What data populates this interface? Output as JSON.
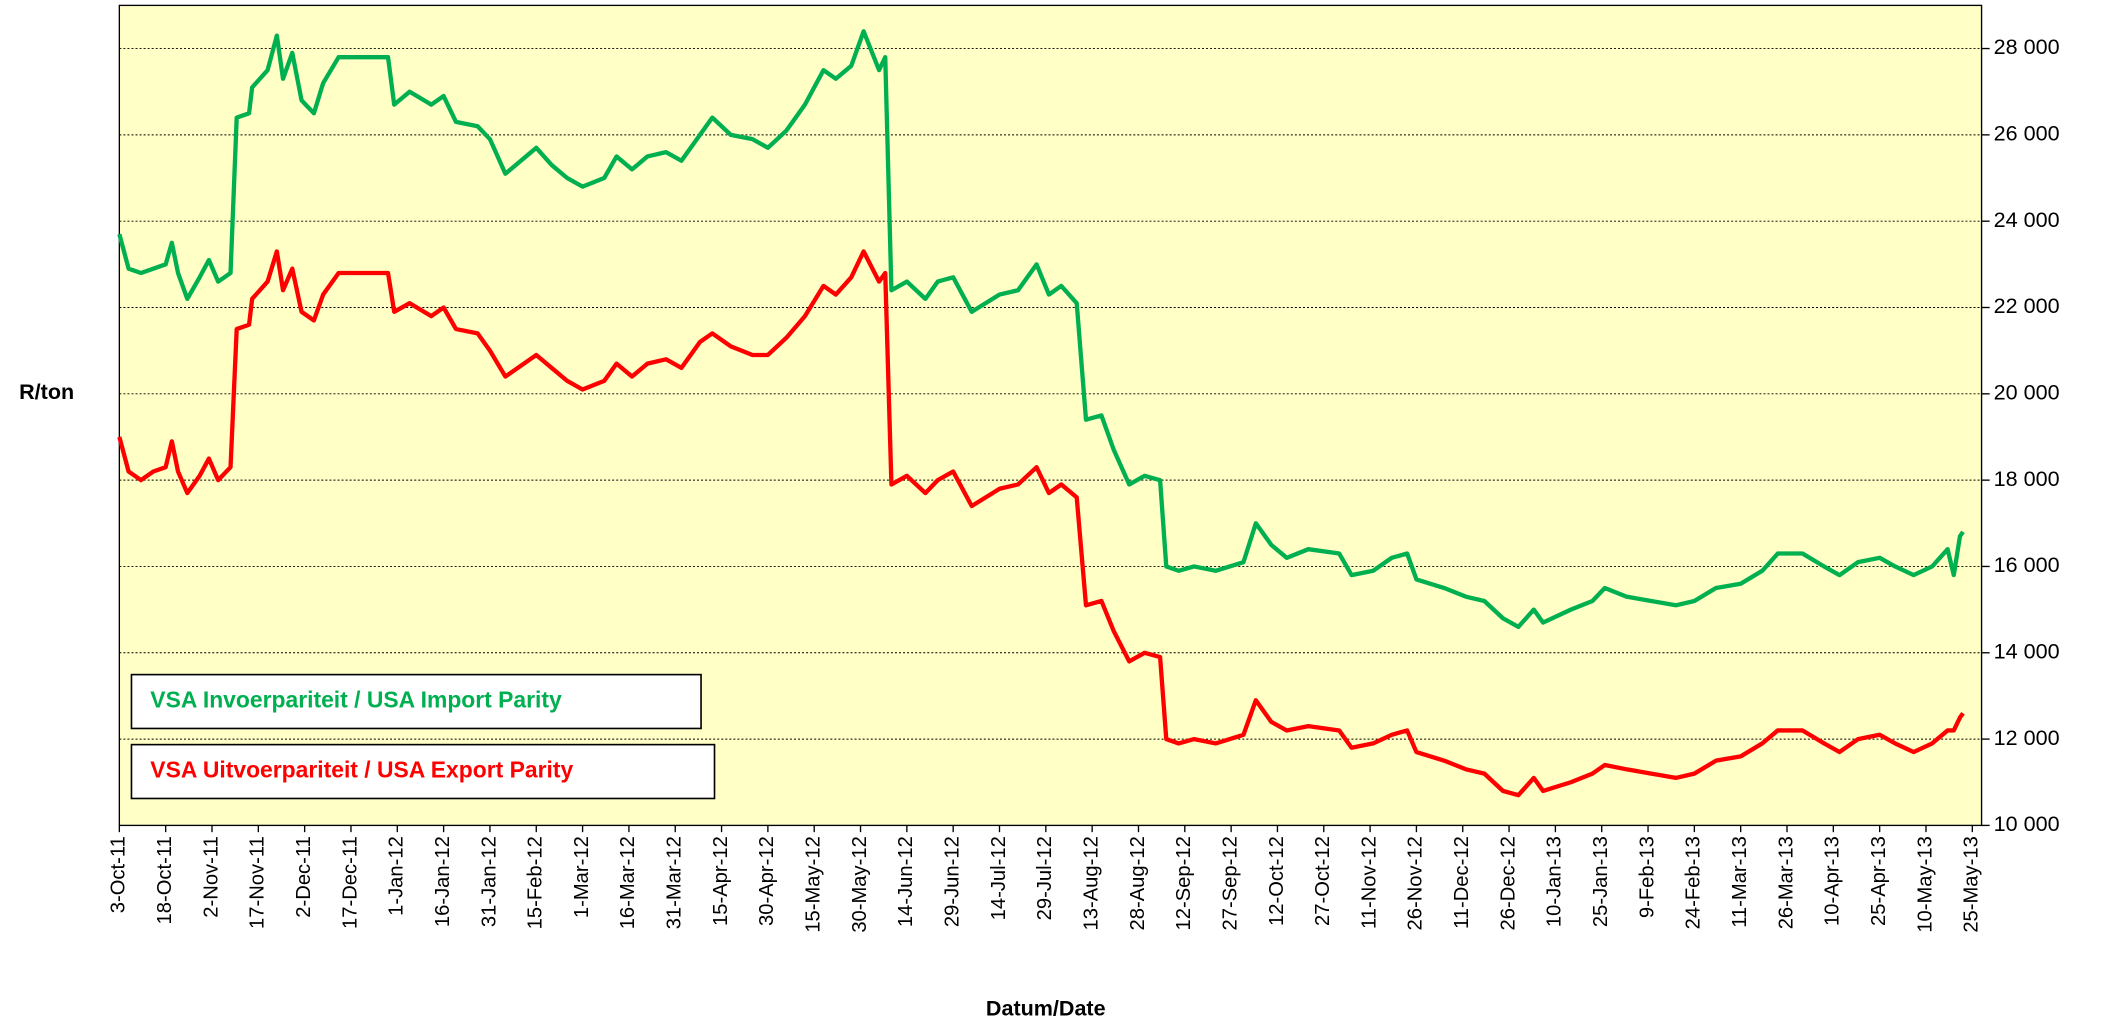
{
  "chart_data": {
    "type": "line",
    "x_label": "Datum/Date",
    "y_label": "R/ton",
    "xlim": [
      "2011-10-03",
      "2013-05-28"
    ],
    "xticks": [
      {
        "value": "2011-10-03",
        "label": "3-Oct-11"
      },
      {
        "value": "2011-10-18",
        "label": "18-Oct-11"
      },
      {
        "value": "2011-11-02",
        "label": "2-Nov-11"
      },
      {
        "value": "2011-11-17",
        "label": "17-Nov-11"
      },
      {
        "value": "2011-12-02",
        "label": "2-Dec-11"
      },
      {
        "value": "2011-12-17",
        "label": "17-Dec-11"
      },
      {
        "value": "2012-01-01",
        "label": "1-Jan-12"
      },
      {
        "value": "2012-01-16",
        "label": "16-Jan-12"
      },
      {
        "value": "2012-01-31",
        "label": "31-Jan-12"
      },
      {
        "value": "2012-02-15",
        "label": "15-Feb-12"
      },
      {
        "value": "2012-03-01",
        "label": "1-Mar-12"
      },
      {
        "value": "2012-03-16",
        "label": "16-Mar-12"
      },
      {
        "value": "2012-03-31",
        "label": "31-Mar-12"
      },
      {
        "value": "2012-04-15",
        "label": "15-Apr-12"
      },
      {
        "value": "2012-04-30",
        "label": "30-Apr-12"
      },
      {
        "value": "2012-05-15",
        "label": "15-May-12"
      },
      {
        "value": "2012-05-30",
        "label": "30-May-12"
      },
      {
        "value": "2012-06-14",
        "label": "14-Jun-12"
      },
      {
        "value": "2012-06-29",
        "label": "29-Jun-12"
      },
      {
        "value": "2012-07-14",
        "label": "14-Jul-12"
      },
      {
        "value": "2012-07-29",
        "label": "29-Jul-12"
      },
      {
        "value": "2012-08-13",
        "label": "13-Aug-12"
      },
      {
        "value": "2012-08-28",
        "label": "28-Aug-12"
      },
      {
        "value": "2012-09-12",
        "label": "12-Sep-12"
      },
      {
        "value": "2012-09-27",
        "label": "27-Sep-12"
      },
      {
        "value": "2012-10-12",
        "label": "12-Oct-12"
      },
      {
        "value": "2012-10-27",
        "label": "27-Oct-12"
      },
      {
        "value": "2012-11-11",
        "label": "11-Nov-12"
      },
      {
        "value": "2012-11-26",
        "label": "26-Nov-12"
      },
      {
        "value": "2012-12-11",
        "label": "11-Dec-12"
      },
      {
        "value": "2012-12-26",
        "label": "26-Dec-12"
      },
      {
        "value": "2013-01-10",
        "label": "10-Jan-13"
      },
      {
        "value": "2013-01-25",
        "label": "25-Jan-13"
      },
      {
        "value": "2013-02-09",
        "label": "9-Feb-13"
      },
      {
        "value": "2013-02-24",
        "label": "24-Feb-13"
      },
      {
        "value": "2013-03-11",
        "label": "11-Mar-13"
      },
      {
        "value": "2013-03-26",
        "label": "26-Mar-13"
      },
      {
        "value": "2013-04-10",
        "label": "10-Apr-13"
      },
      {
        "value": "2013-04-25",
        "label": "25-Apr-13"
      },
      {
        "value": "2013-05-10",
        "label": "10-May-13"
      },
      {
        "value": "2013-05-25",
        "label": "25-May-13"
      }
    ],
    "ylim": [
      10000,
      29000
    ],
    "yticks": [
      {
        "value": 10000,
        "label": "10 000"
      },
      {
        "value": 12000,
        "label": "12 000"
      },
      {
        "value": 14000,
        "label": "14 000"
      },
      {
        "value": 16000,
        "label": "16 000"
      },
      {
        "value": 18000,
        "label": "18 000"
      },
      {
        "value": 20000,
        "label": "20 000"
      },
      {
        "value": 22000,
        "label": "22 000"
      },
      {
        "value": 24000,
        "label": "24 000"
      },
      {
        "value": 26000,
        "label": "26 000"
      },
      {
        "value": 28000,
        "label": "28 000"
      }
    ],
    "y_axis_side": "right",
    "grid": true,
    "background": "#ffffc6",
    "legend": "lower left",
    "x": [
      "2011-10-03",
      "2011-10-06",
      "2011-10-10",
      "2011-10-14",
      "2011-10-18",
      "2011-10-20",
      "2011-10-22",
      "2011-10-25",
      "2011-10-29",
      "2011-11-01",
      "2011-11-04",
      "2011-11-08",
      "2011-11-10",
      "2011-11-14",
      "2011-11-15",
      "2011-11-20",
      "2011-11-23",
      "2011-11-25",
      "2011-11-28",
      "2011-12-01",
      "2011-12-05",
      "2011-12-08",
      "2011-12-13",
      "2011-12-29",
      "2011-12-31",
      "2012-01-05",
      "2012-01-12",
      "2012-01-16",
      "2012-01-20",
      "2012-01-27",
      "2012-01-31",
      "2012-02-05",
      "2012-02-15",
      "2012-02-20",
      "2012-02-25",
      "2012-03-01",
      "2012-03-08",
      "2012-03-12",
      "2012-03-17",
      "2012-03-22",
      "2012-03-28",
      "2012-04-02",
      "2012-04-08",
      "2012-04-12",
      "2012-04-18",
      "2012-04-25",
      "2012-04-30",
      "2012-05-06",
      "2012-05-12",
      "2012-05-18",
      "2012-05-22",
      "2012-05-27",
      "2012-05-31",
      "2012-06-05",
      "2012-06-07",
      "2012-06-09",
      "2012-06-14",
      "2012-06-20",
      "2012-06-24",
      "2012-06-29",
      "2012-07-05",
      "2012-07-14",
      "2012-07-20",
      "2012-07-26",
      "2012-07-30",
      "2012-08-03",
      "2012-08-08",
      "2012-08-11",
      "2012-08-16",
      "2012-08-20",
      "2012-08-25",
      "2012-08-30",
      "2012-09-04",
      "2012-09-06",
      "2012-09-10",
      "2012-09-15",
      "2012-09-22",
      "2012-10-01",
      "2012-10-05",
      "2012-10-10",
      "2012-10-15",
      "2012-10-22",
      "2012-11-01",
      "2012-11-05",
      "2012-11-12",
      "2012-11-18",
      "2012-11-23",
      "2012-11-26",
      "2012-12-05",
      "2012-12-12",
      "2012-12-18",
      "2012-12-24",
      "2012-12-29",
      "2013-01-03",
      "2013-01-06",
      "2013-01-15",
      "2013-01-22",
      "2013-01-26",
      "2013-02-02",
      "2013-02-10",
      "2013-02-18",
      "2013-02-24",
      "2013-03-03",
      "2013-03-11",
      "2013-03-18",
      "2013-03-23",
      "2013-03-31",
      "2013-04-07",
      "2013-04-12",
      "2013-04-18",
      "2013-04-25",
      "2013-04-30",
      "2013-05-06",
      "2013-05-12",
      "2013-05-17",
      "2013-05-19",
      "2013-05-21",
      "2013-05-22"
    ],
    "series": [
      {
        "name": "VSA Invoerpariteit / USA Import Parity",
        "color": "#00b050",
        "values": [
          23700,
          22900,
          22800,
          22900,
          23000,
          23500,
          22800,
          22200,
          22700,
          23100,
          22600,
          22800,
          26400,
          26500,
          27100,
          27500,
          28300,
          27300,
          27900,
          26800,
          26500,
          27200,
          27800,
          27800,
          26700,
          27000,
          26700,
          26900,
          26300,
          26200,
          25900,
          25100,
          25700,
          25300,
          25000,
          24800,
          25000,
          25500,
          25200,
          25500,
          25600,
          25400,
          26000,
          26400,
          26000,
          25900,
          25700,
          26100,
          26700,
          27500,
          27300,
          27600,
          28400,
          27500,
          27800,
          22400,
          22600,
          22200,
          22600,
          22700,
          21900,
          22300,
          22400,
          23000,
          22300,
          22500,
          22100,
          19400,
          19500,
          18700,
          17900,
          18100,
          18000,
          16000,
          15900,
          16000,
          15900,
          16100,
          17000,
          16500,
          16200,
          16400,
          16300,
          15800,
          15900,
          16200,
          16300,
          15700,
          15500,
          15300,
          15200,
          14800,
          14600,
          15000,
          14700,
          15000,
          15200,
          15500,
          15300,
          15200,
          15100,
          15200,
          15500,
          15600,
          15900,
          16300,
          16300,
          16000,
          15800,
          16100,
          16200,
          16000,
          15800,
          16000,
          16400,
          15800,
          16700,
          16800
        ]
      },
      {
        "name": "VSA Uitvoerpariteit / USA Export Parity",
        "color": "#ff0000",
        "values": [
          19000,
          18200,
          18000,
          18200,
          18300,
          18900,
          18200,
          17700,
          18100,
          18500,
          18000,
          18300,
          21500,
          21600,
          22200,
          22600,
          23300,
          22400,
          22900,
          21900,
          21700,
          22300,
          22800,
          22800,
          21900,
          22100,
          21800,
          22000,
          21500,
          21400,
          21000,
          20400,
          20900,
          20600,
          20300,
          20100,
          20300,
          20700,
          20400,
          20700,
          20800,
          20600,
          21200,
          21400,
          21100,
          20900,
          20900,
          21300,
          21800,
          22500,
          22300,
          22700,
          23300,
          22600,
          22800,
          17900,
          18100,
          17700,
          18000,
          18200,
          17400,
          17800,
          17900,
          18300,
          17700,
          17900,
          17600,
          15100,
          15200,
          14500,
          13800,
          14000,
          13900,
          12000,
          11900,
          12000,
          11900,
          12100,
          12900,
          12400,
          12200,
          12300,
          12200,
          11800,
          11900,
          12100,
          12200,
          11700,
          11500,
          11300,
          11200,
          10800,
          10700,
          11100,
          10800,
          11000,
          11200,
          11400,
          11300,
          11200,
          11100,
          11200,
          11500,
          11600,
          11900,
          12200,
          12200,
          11900,
          11700,
          12000,
          12100,
          11900,
          11700,
          11900,
          12200,
          12200,
          12500,
          12600
        ]
      }
    ]
  }
}
